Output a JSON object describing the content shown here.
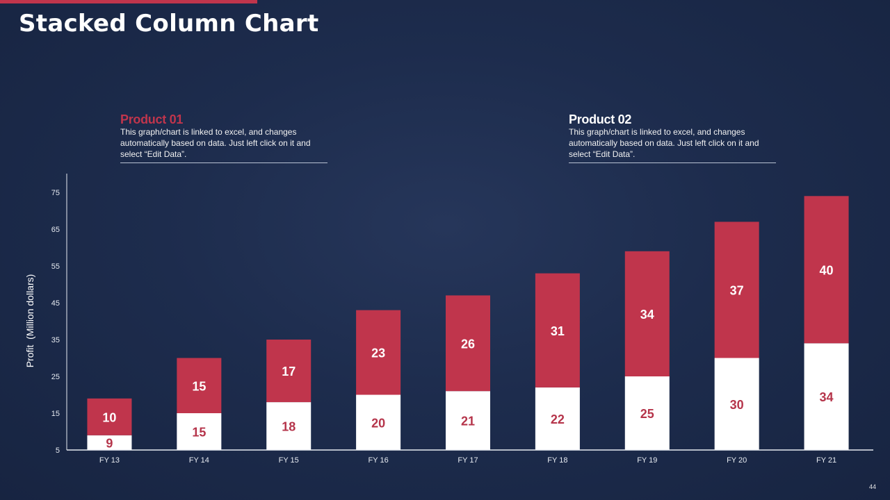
{
  "slide": {
    "title": "Stacked Column Chart",
    "page_number": "44",
    "accent_color": "#c0354c"
  },
  "legend": [
    {
      "name": "Product 01",
      "description": "This graph/chart is linked to excel, and changes automatically based on data. Just left click on it and select “Edit Data”.",
      "color": "#c0354c"
    },
    {
      "name": "Product 02",
      "description": "This graph/chart is linked to excel, and changes automatically based on data. Just left click on it and select “Edit Data”.",
      "color": "#ffffff"
    }
  ],
  "chart_data": {
    "type": "bar",
    "stacked": true,
    "title": "Stacked Column Chart",
    "xlabel": "",
    "ylabel": "Profit  (Million dollars)",
    "categories": [
      "FY 13",
      "FY 14",
      "FY 15",
      "FY 16",
      "FY 17",
      "FY 18",
      "FY 19",
      "FY 20",
      "FY 21"
    ],
    "series": [
      {
        "name": "Product 02",
        "color": "#ffffff",
        "label_color": "#b5344a",
        "values": [
          9,
          15,
          18,
          20,
          21,
          22,
          25,
          30,
          34
        ]
      },
      {
        "name": "Product 01",
        "color": "#c0354c",
        "label_color": "#ffffff",
        "values": [
          10,
          15,
          17,
          23,
          26,
          31,
          34,
          37,
          40
        ]
      }
    ],
    "ylim": [
      5,
      75
    ],
    "yticks": [
      5,
      15,
      25,
      35,
      45,
      55,
      65,
      75
    ],
    "grid": false,
    "legend_position": "top"
  }
}
